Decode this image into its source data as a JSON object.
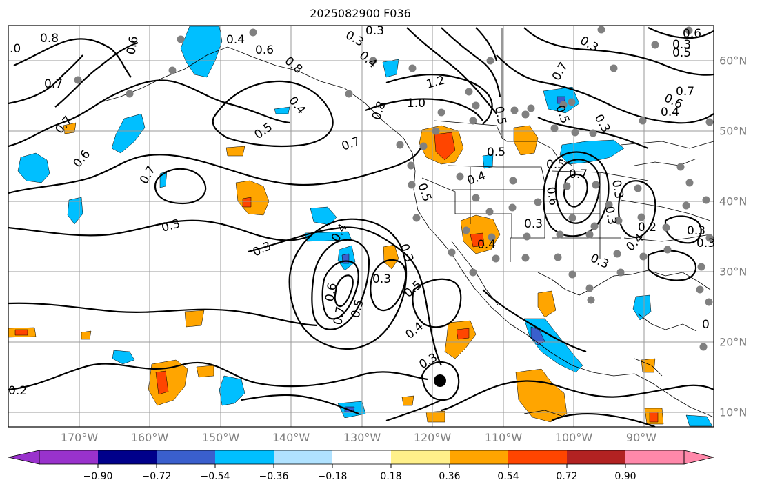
{
  "title": "2025082900 F036",
  "longitude_labels": [
    "170°W",
    "160°W",
    "150°W",
    "140°W",
    "130°W",
    "120°W",
    "110°W",
    "100°W",
    "90°W"
  ],
  "latitude_labels": [
    "60°N",
    "50°N",
    "40°N",
    "30°N",
    "20°N",
    "10°N"
  ],
  "contour_labels": [
    ".0",
    "0.8",
    "0.4",
    "0.3",
    "0.3",
    "0.6",
    "0.8",
    "0.7",
    "0.7",
    "0.6",
    "0.4",
    "0.5",
    "0.7",
    "0.6",
    "1.2",
    "1.0",
    "0.8",
    "0.5",
    "0.3",
    "0.4",
    "0.6",
    "0.7",
    "0.3",
    "0.3",
    "0.5",
    "0.5",
    "0.7",
    "0.4",
    "0.6",
    "0.7",
    "0.3",
    "0.5",
    "0.4",
    "0.3",
    "0.5",
    "0.6",
    "0.7",
    "0.5",
    "0.4",
    "0.3",
    "0.3",
    "0.2",
    "0.3",
    "0.3",
    "0.4",
    "0.3",
    "0.4",
    "0.3",
    "0.6",
    "0.7",
    "0.5",
    "0.3",
    "0.3",
    "0.5",
    "0.4",
    "0.3",
    "0.2",
    "0"
  ],
  "colorbar": {
    "tick_labels": [
      "−0.90",
      "−0.72",
      "−0.54",
      "−0.36",
      "−0.18",
      "0.18",
      "0.36",
      "0.54",
      "0.72",
      "0.90"
    ],
    "colors": [
      "#9932cc",
      "#00008b",
      "#3a5fcd",
      "#00bfff",
      "#b0e2ff",
      "#ffffff",
      "#fff08a",
      "#ffa500",
      "#ff4500",
      "#b22222",
      "#ff88aa"
    ]
  },
  "marker": "storm-center-marker"
}
